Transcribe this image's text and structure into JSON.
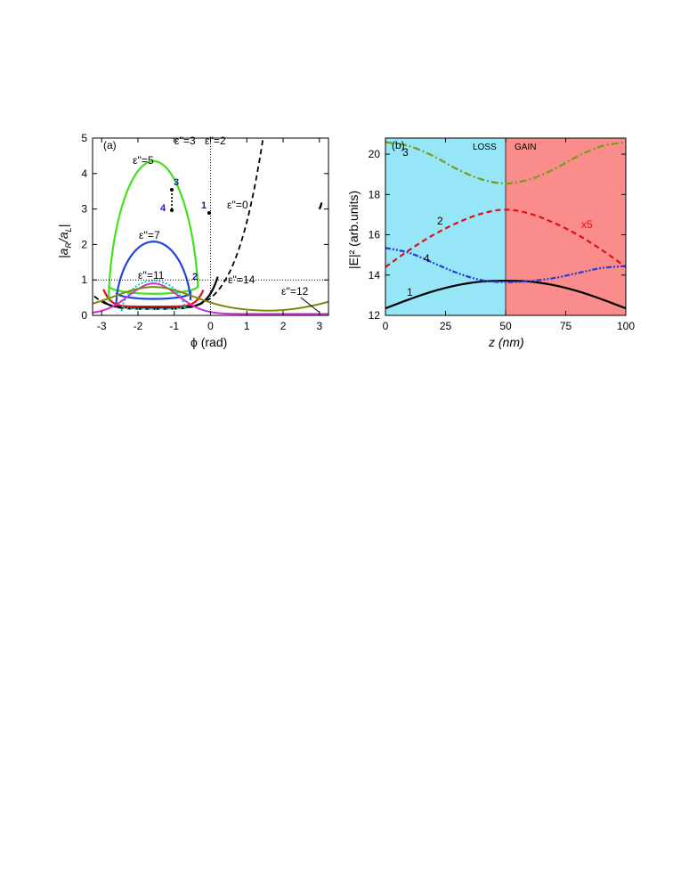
{
  "chart_data": [
    {
      "type": "line",
      "panel_label": "(a)",
      "xlabel": "ϕ (rad)",
      "ylabel_html": "|a_R/a_L|",
      "xlim": [
        -3.25,
        3.25
      ],
      "ylim": [
        0,
        5
      ],
      "xticks": [
        "-3",
        "-2",
        "-1",
        "0",
        "1",
        "2",
        "3"
      ],
      "yticks": [
        "0",
        "1",
        "2",
        "3",
        "4",
        "5"
      ],
      "reference_lines": {
        "vertical_x": 0,
        "horizontal_y": 1,
        "style": "dotted"
      },
      "curve_labels": [
        "ε''=0",
        "ε''=2",
        "ε''=3",
        "ε''=5",
        "ε''=7",
        "ε''=11",
        "ε''=12",
        "ε''=14"
      ],
      "marker_labels": [
        "1",
        "2",
        "3",
        "4"
      ],
      "colors": {
        "eps0": "#000000",
        "eps2": "#000000",
        "eps3": "#e01010",
        "eps5": "#44e020",
        "eps7": "#2244dd",
        "eps11": "#00c8c8",
        "eps12": "#cc33cc",
        "eps14": "#7a8a10",
        "markers": "#1a1aa6"
      }
    },
    {
      "type": "line",
      "panel_label": "(b)",
      "xlabel": "z (nm)",
      "ylabel": "|E|² (arb.units)",
      "xlim": [
        0,
        100
      ],
      "ylim": [
        12,
        20.8
      ],
      "xticks": [
        "0",
        "25",
        "50",
        "75",
        "100"
      ],
      "yticks": [
        "12",
        "14",
        "16",
        "18",
        "20"
      ],
      "regions": [
        {
          "label": "LOSS",
          "x": [
            0,
            50
          ],
          "color": "#96e6f8"
        },
        {
          "label": "GAIN",
          "x": [
            50,
            100
          ],
          "color": "#fa8c8c"
        }
      ],
      "series": [
        {
          "name": "1",
          "style": "solid",
          "color": "#000000",
          "x": [
            0,
            10,
            20,
            30,
            40,
            50,
            60,
            70,
            80,
            90,
            100
          ],
          "y": [
            12.35,
            12.8,
            13.2,
            13.5,
            13.68,
            13.72,
            13.68,
            13.5,
            13.2,
            12.8,
            12.35
          ]
        },
        {
          "name": "2",
          "style": "dashed",
          "color": "#e01010",
          "note": "x5",
          "x": [
            0,
            10,
            20,
            30,
            40,
            50,
            60,
            70,
            80,
            90,
            100
          ],
          "y": [
            14.4,
            15.25,
            16.0,
            16.6,
            17.05,
            17.25,
            17.05,
            16.6,
            16.0,
            15.25,
            14.4
          ]
        },
        {
          "name": "3",
          "style": "dash-dot",
          "color": "#7a9a1a",
          "x": [
            0,
            10,
            20,
            30,
            40,
            50,
            60,
            70,
            80,
            90,
            100
          ],
          "y": [
            20.6,
            20.4,
            19.9,
            19.25,
            18.75,
            18.55,
            18.75,
            19.25,
            19.9,
            20.4,
            20.6
          ]
        },
        {
          "name": "4",
          "style": "dash-dot-dot",
          "color": "#2a3ad8",
          "x": [
            0,
            10,
            20,
            30,
            40,
            50,
            60,
            70,
            80,
            90,
            100
          ],
          "y": [
            15.35,
            15.1,
            14.6,
            14.1,
            13.75,
            13.65,
            13.7,
            13.85,
            14.1,
            14.35,
            14.45
          ]
        }
      ]
    }
  ]
}
